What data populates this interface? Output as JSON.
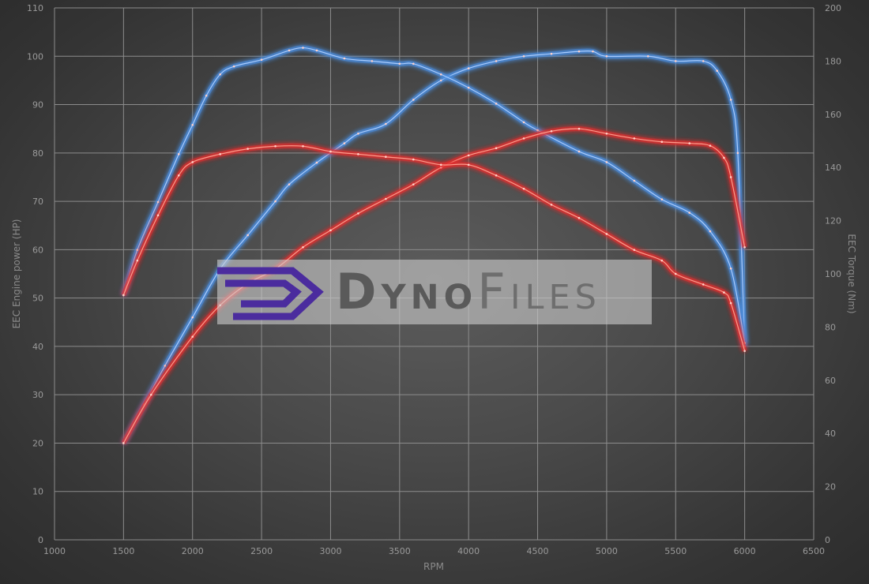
{
  "chart_data": {
    "type": "line",
    "xlabel": "RPM",
    "ylabel": "EEC Engine power (HP)",
    "y2label": "EEC Torque (Nm)",
    "xlim": [
      1000,
      6500
    ],
    "ylim": [
      0,
      110
    ],
    "y2lim": [
      0,
      200
    ],
    "xticks": [
      1000,
      1500,
      2000,
      2500,
      3000,
      3500,
      4000,
      4500,
      5000,
      5500,
      6000,
      6500
    ],
    "yticks": [
      0,
      10,
      20,
      30,
      40,
      50,
      60,
      70,
      80,
      90,
      100,
      110
    ],
    "y2ticks": [
      0,
      20,
      40,
      60,
      80,
      100,
      120,
      140,
      160,
      180,
      200
    ],
    "grid": true,
    "legend": "none",
    "series": [
      {
        "axis": "left",
        "color": "#4a8ee0",
        "x": [
          1500,
          1650,
          1800,
          2000,
          2200,
          2400,
          2600,
          2700,
          2900,
          3100,
          3200,
          3400,
          3600,
          3800,
          4000,
          4200,
          4400,
          4600,
          4800,
          4900,
          5000,
          5300,
          5500,
          5700,
          5800,
          5900,
          5950,
          6000
        ],
        "y": [
          20,
          28,
          36,
          46,
          56,
          63,
          70,
          73.5,
          78,
          82,
          84,
          86,
          91,
          95,
          97.5,
          99,
          100,
          100.5,
          101,
          101,
          100,
          100,
          99,
          99,
          97,
          91,
          80,
          40
        ]
      },
      {
        "axis": "right",
        "color": "#4a8ee0",
        "x": [
          1500,
          1600,
          1750,
          1900,
          2000,
          2100,
          2200,
          2300,
          2500,
          2700,
          2800,
          2900,
          3100,
          3300,
          3500,
          3600,
          3800,
          4000,
          4200,
          4400,
          4500,
          4800,
          5000,
          5200,
          5400,
          5600,
          5750,
          5900,
          6000
        ],
        "y": [
          92,
          109,
          127,
          145,
          156,
          167,
          175,
          178,
          180.5,
          184,
          185,
          184,
          181,
          180,
          179,
          179,
          175,
          170,
          164,
          157,
          154,
          146,
          142,
          135,
          128,
          123,
          116,
          102,
          74
        ]
      },
      {
        "axis": "left",
        "color": "#e03030",
        "x": [
          1500,
          1700,
          2000,
          2200,
          2400,
          2600,
          2800,
          3000,
          3200,
          3400,
          3600,
          3800,
          4000,
          4200,
          4400,
          4600,
          4800,
          5000,
          5200,
          5400,
          5600,
          5750,
          5850,
          5900,
          6000
        ],
        "y": [
          20,
          30,
          42,
          48.5,
          53,
          56,
          60.5,
          64,
          67.5,
          70.5,
          73.5,
          77,
          79.5,
          81,
          83,
          84.5,
          85,
          84,
          83,
          82.3,
          82,
          81.5,
          79,
          75,
          60.5
        ]
      },
      {
        "axis": "right",
        "color": "#e03030",
        "x": [
          1500,
          1600,
          1750,
          1900,
          2000,
          2200,
          2400,
          2600,
          2800,
          3000,
          3200,
          3400,
          3600,
          3800,
          4000,
          4200,
          4400,
          4600,
          4800,
          5000,
          5200,
          5400,
          5500,
          5700,
          5850,
          5900,
          6000
        ],
        "y": [
          92,
          105,
          122,
          137,
          142,
          145,
          147,
          148,
          148,
          146,
          145,
          144,
          143,
          141,
          141,
          137,
          132,
          126,
          121,
          115,
          109,
          105,
          100,
          96,
          93,
          89,
          71
        ]
      }
    ]
  },
  "watermark": {
    "text_a": "Dyno",
    "text_b": "Files",
    "logo_color": "#4b2c9e"
  }
}
